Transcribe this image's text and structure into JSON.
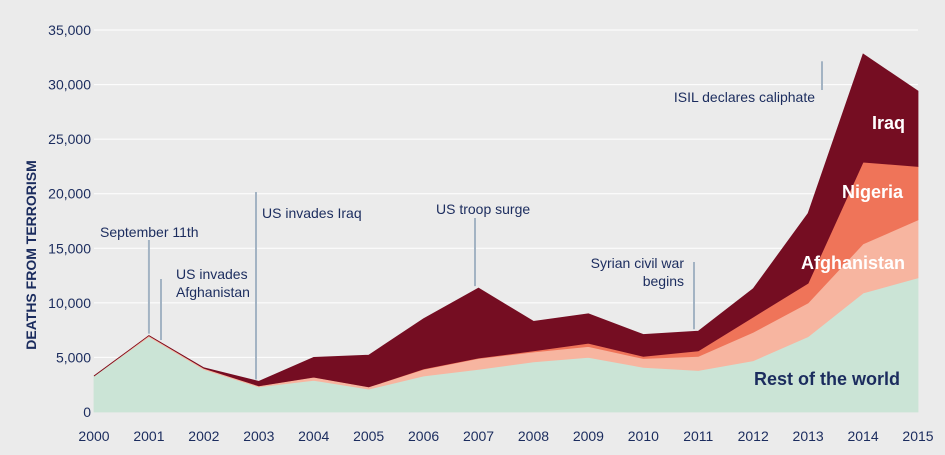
{
  "chart_data": {
    "type": "area",
    "stacked": true,
    "ylabel": "DEATHS FROM TERRORISM",
    "xlabel": "",
    "x": [
      2000,
      2001,
      2002,
      2003,
      2004,
      2005,
      2006,
      2007,
      2008,
      2009,
      2010,
      2011,
      2012,
      2013,
      2014,
      2015
    ],
    "xticks": [
      "2000",
      "2001",
      "2002",
      "2003",
      "2004",
      "2005",
      "2006",
      "2007",
      "2008",
      "2009",
      "2010",
      "2011",
      "2012",
      "2013",
      "2014",
      "2015"
    ],
    "ylim": [
      0,
      35000
    ],
    "yticks": [
      0,
      5000,
      10000,
      15000,
      20000,
      25000,
      30000,
      35000
    ],
    "ytick_labels": [
      "0",
      "5,000",
      "10,000",
      "15,000",
      "20,000",
      "25,000",
      "30,000",
      "35,000"
    ],
    "grid": true,
    "series": [
      {
        "name": "Rest of the world",
        "color": "#cbe4d6",
        "label_color": "#1b2c5e",
        "values": [
          3300,
          6900,
          3900,
          2300,
          2900,
          2100,
          3300,
          3900,
          4600,
          5000,
          4100,
          3800,
          4700,
          6900,
          10900,
          12300
        ]
      },
      {
        "name": "Afghanistan",
        "color": "#f7b5a0",
        "label_color": "#ffffff",
        "values": [
          0,
          100,
          100,
          100,
          300,
          200,
          600,
          1000,
          900,
          1000,
          800,
          1300,
          2600,
          3100,
          4500,
          5300
        ]
      },
      {
        "name": "Nigeria",
        "color": "#ef7459",
        "label_color": "#ffffff",
        "values": [
          0,
          0,
          0,
          0,
          0,
          0,
          50,
          50,
          100,
          300,
          200,
          500,
          1400,
          1800,
          7500,
          4900
        ]
      },
      {
        "name": "Iraq",
        "color": "#750d22",
        "label_color": "#ffffff",
        "values": [
          0,
          0,
          50,
          400,
          1800,
          2900,
          4600,
          6400,
          2700,
          2700,
          2000,
          1800,
          2600,
          6400,
          9900,
          6900
        ]
      }
    ],
    "annotations": [
      {
        "text": [
          "September 11th"
        ],
        "year": 2001
      },
      {
        "text": [
          "US invades",
          "Afghanistan"
        ],
        "year": 2001.2
      },
      {
        "text": [
          "US invades Iraq"
        ],
        "year": 2003
      },
      {
        "text": [
          "US troop surge"
        ],
        "year": 2007
      },
      {
        "text": [
          "Syrian civil war",
          "begins"
        ],
        "year": 2011
      },
      {
        "text": [
          "ISIL declares caliphate"
        ],
        "year": 2014.25
      }
    ]
  }
}
